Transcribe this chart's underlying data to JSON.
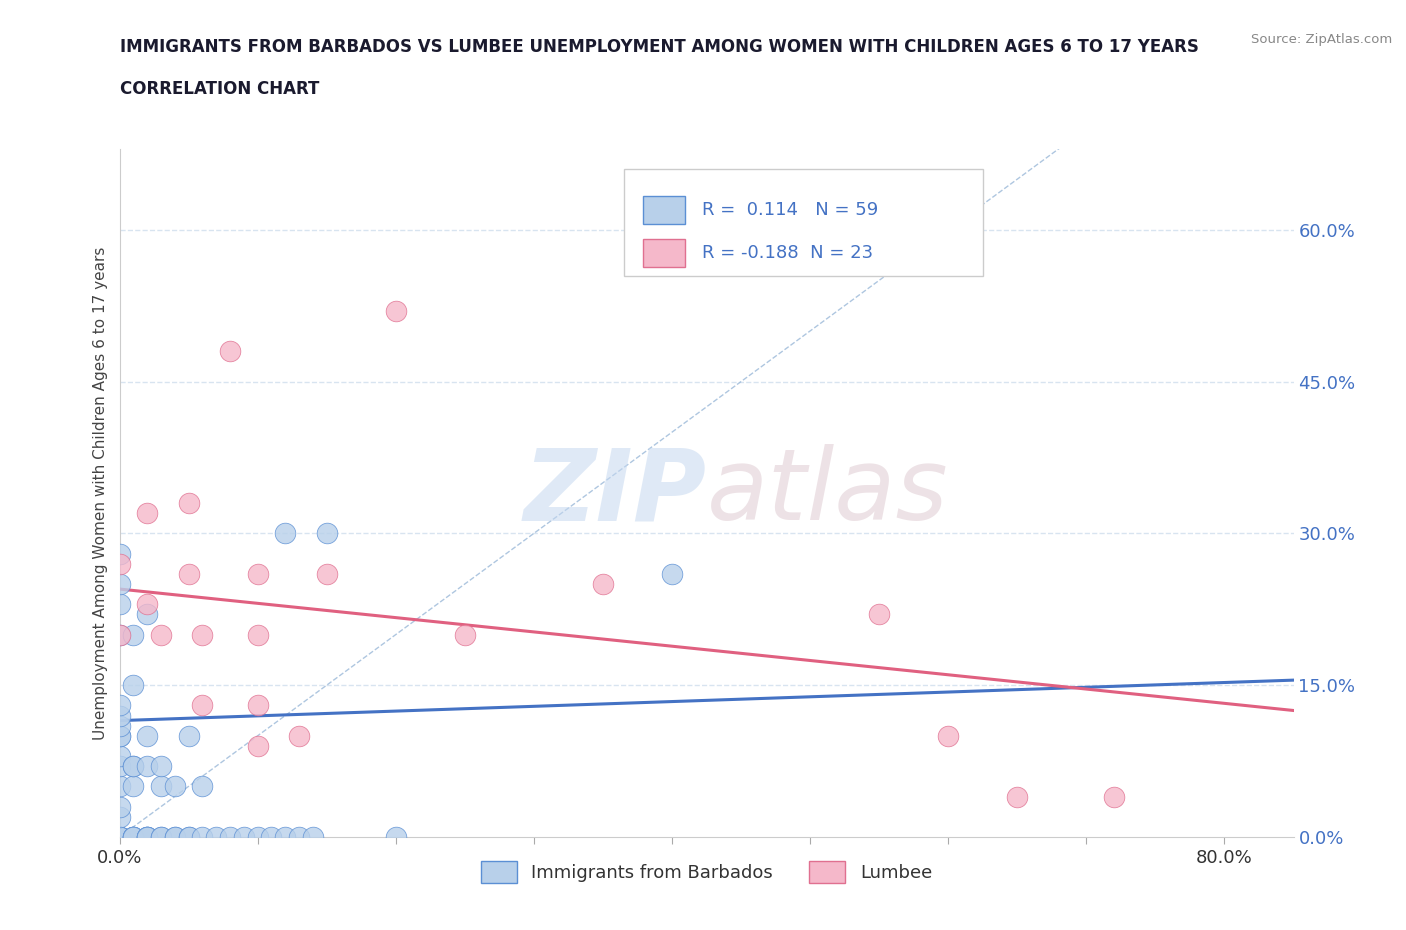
{
  "title_line1": "IMMIGRANTS FROM BARBADOS VS LUMBEE UNEMPLOYMENT AMONG WOMEN WITH CHILDREN AGES 6 TO 17 YEARS",
  "title_line2": "CORRELATION CHART",
  "source_text": "Source: ZipAtlas.com",
  "ylabel": "Unemployment Among Women with Children Ages 6 to 17 years",
  "xlim": [
    0.0,
    0.85
  ],
  "ylim": [
    0.0,
    0.68
  ],
  "watermark_zip": "ZIP",
  "watermark_atlas": "atlas",
  "barbados_R": 0.114,
  "barbados_N": 59,
  "lumbee_R": -0.188,
  "lumbee_N": 23,
  "barbados_color": "#b8d0ea",
  "lumbee_color": "#f5b8ca",
  "barbados_edge_color": "#5b8fd4",
  "lumbee_edge_color": "#e07090",
  "barbados_trend_color": "#4472c4",
  "lumbee_trend_color": "#e06080",
  "diag_line_color": "#9ab8d8",
  "grid_color": "#d8e4f0",
  "background_color": "#ffffff",
  "title_color": "#1a1a2e",
  "label_color": "#4472c4",
  "barbados_scatter": [
    [
      0.0,
      0.0
    ],
    [
      0.0,
      0.0
    ],
    [
      0.0,
      0.0
    ],
    [
      0.0,
      0.0
    ],
    [
      0.0,
      0.0
    ],
    [
      0.0,
      0.02
    ],
    [
      0.0,
      0.03
    ],
    [
      0.0,
      0.05
    ],
    [
      0.0,
      0.07
    ],
    [
      0.0,
      0.08
    ],
    [
      0.0,
      0.1
    ],
    [
      0.0,
      0.1
    ],
    [
      0.0,
      0.11
    ],
    [
      0.0,
      0.12
    ],
    [
      0.0,
      0.13
    ],
    [
      0.0,
      0.2
    ],
    [
      0.0,
      0.23
    ],
    [
      0.0,
      0.25
    ],
    [
      0.0,
      0.28
    ],
    [
      0.01,
      0.0
    ],
    [
      0.01,
      0.0
    ],
    [
      0.01,
      0.0
    ],
    [
      0.01,
      0.0
    ],
    [
      0.01,
      0.05
    ],
    [
      0.01,
      0.07
    ],
    [
      0.01,
      0.07
    ],
    [
      0.01,
      0.15
    ],
    [
      0.01,
      0.2
    ],
    [
      0.02,
      0.0
    ],
    [
      0.02,
      0.0
    ],
    [
      0.02,
      0.0
    ],
    [
      0.02,
      0.0
    ],
    [
      0.02,
      0.07
    ],
    [
      0.02,
      0.1
    ],
    [
      0.02,
      0.22
    ],
    [
      0.03,
      0.0
    ],
    [
      0.03,
      0.0
    ],
    [
      0.03,
      0.05
    ],
    [
      0.03,
      0.07
    ],
    [
      0.04,
      0.0
    ],
    [
      0.04,
      0.0
    ],
    [
      0.04,
      0.05
    ],
    [
      0.05,
      0.0
    ],
    [
      0.05,
      0.0
    ],
    [
      0.05,
      0.1
    ],
    [
      0.06,
      0.0
    ],
    [
      0.06,
      0.05
    ],
    [
      0.07,
      0.0
    ],
    [
      0.08,
      0.0
    ],
    [
      0.09,
      0.0
    ],
    [
      0.1,
      0.0
    ],
    [
      0.11,
      0.0
    ],
    [
      0.12,
      0.0
    ],
    [
      0.13,
      0.0
    ],
    [
      0.14,
      0.0
    ],
    [
      0.12,
      0.3
    ],
    [
      0.15,
      0.3
    ],
    [
      0.2,
      0.0
    ],
    [
      0.4,
      0.26
    ]
  ],
  "lumbee_scatter": [
    [
      0.0,
      0.2
    ],
    [
      0.0,
      0.27
    ],
    [
      0.02,
      0.32
    ],
    [
      0.02,
      0.23
    ],
    [
      0.03,
      0.2
    ],
    [
      0.05,
      0.33
    ],
    [
      0.05,
      0.26
    ],
    [
      0.06,
      0.2
    ],
    [
      0.06,
      0.13
    ],
    [
      0.08,
      0.48
    ],
    [
      0.1,
      0.26
    ],
    [
      0.1,
      0.2
    ],
    [
      0.1,
      0.09
    ],
    [
      0.1,
      0.13
    ],
    [
      0.13,
      0.1
    ],
    [
      0.15,
      0.26
    ],
    [
      0.2,
      0.52
    ],
    [
      0.25,
      0.2
    ],
    [
      0.35,
      0.25
    ],
    [
      0.55,
      0.22
    ],
    [
      0.6,
      0.1
    ],
    [
      0.65,
      0.04
    ],
    [
      0.72,
      0.04
    ]
  ],
  "barbados_trend_endpoints": [
    [
      0.0,
      0.115
    ],
    [
      0.85,
      0.155
    ]
  ],
  "lumbee_trend_endpoints": [
    [
      0.0,
      0.245
    ],
    [
      0.85,
      0.125
    ]
  ]
}
